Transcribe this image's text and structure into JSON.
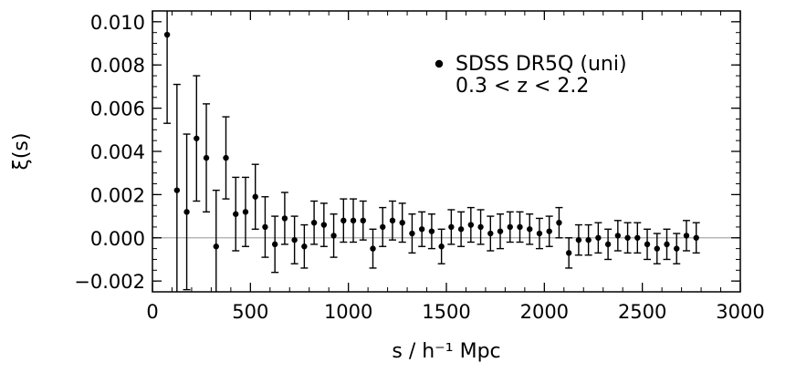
{
  "chart_data": {
    "type": "scatter",
    "title": "",
    "xlabel": "s / h⁻¹ Mpc",
    "ylabel": "ξ(s)",
    "xlim": [
      0,
      3000
    ],
    "ylim": [
      -0.0025,
      0.0105
    ],
    "grid": false,
    "reference_line": 0.0,
    "reference_line_color": "#aaaaaa",
    "x_ticks": [
      0,
      500,
      1000,
      1500,
      2000,
      2500,
      3000
    ],
    "x_tick_labels": [
      "0",
      "500",
      "1000",
      "1500",
      "2000",
      "2500",
      "3000"
    ],
    "y_ticks": [
      -0.002,
      0.0,
      0.002,
      0.004,
      0.006,
      0.008,
      0.01
    ],
    "y_tick_labels": [
      "−0.002",
      "0.000",
      "0.002",
      "0.004",
      "0.006",
      "0.008",
      "0.010"
    ],
    "legend": {
      "placement": "top-right",
      "lines": [
        "SDSS DR5Q (uni)",
        "0.3 < z < 2.2"
      ]
    },
    "series": [
      {
        "name": "SDSS DR5Q (uni)",
        "marker": "filled-circle",
        "color": "#000000",
        "x": [
          75,
          125,
          175,
          225,
          275,
          325,
          375,
          425,
          475,
          525,
          575,
          625,
          675,
          725,
          775,
          825,
          875,
          925,
          975,
          1025,
          1075,
          1125,
          1175,
          1225,
          1275,
          1325,
          1375,
          1425,
          1475,
          1525,
          1575,
          1625,
          1675,
          1725,
          1775,
          1825,
          1875,
          1925,
          1975,
          2025,
          2075,
          2125,
          2175,
          2225,
          2275,
          2325,
          2375,
          2425,
          2475,
          2525,
          2575,
          2625,
          2675,
          2725,
          2775
        ],
        "y": [
          0.0094,
          0.0022,
          0.0012,
          0.0046,
          0.0037,
          -0.0004,
          0.0037,
          0.0011,
          0.0012,
          0.0019,
          0.0005,
          -0.0003,
          0.0009,
          -0.0001,
          -0.0004,
          0.0007,
          0.0006,
          0.0001,
          0.0008,
          0.0008,
          0.0008,
          -0.0005,
          0.0005,
          0.0008,
          0.0007,
          0.0002,
          0.0004,
          0.0003,
          -0.0004,
          0.0005,
          0.0004,
          0.0006,
          0.0005,
          0.0002,
          0.0003,
          0.0005,
          0.0005,
          0.0004,
          0.0002,
          0.0003,
          0.0007,
          -0.0007,
          -0.0001,
          -0.0001,
          0.0,
          -0.0003,
          0.0001,
          0.0,
          0.0,
          -0.0003,
          -0.0005,
          -0.0003,
          -0.0005,
          0.0001,
          0.0
        ],
        "err": [
          0.0041,
          0.0049,
          0.0036,
          0.0029,
          0.0025,
          0.0026,
          0.0019,
          0.0017,
          0.0016,
          0.0015,
          0.0014,
          0.0013,
          0.0012,
          0.0011,
          0.001,
          0.001,
          0.001,
          0.001,
          0.001,
          0.001,
          0.0009,
          0.0009,
          0.0009,
          0.0009,
          0.0009,
          0.0009,
          0.0008,
          0.0008,
          0.0008,
          0.0008,
          0.0008,
          0.0008,
          0.0008,
          0.0008,
          0.0008,
          0.0007,
          0.0007,
          0.0007,
          0.0007,
          0.0007,
          0.0007,
          0.0007,
          0.0007,
          0.0007,
          0.0007,
          0.0007,
          0.0007,
          0.0007,
          0.0007,
          0.0007,
          0.0007,
          0.0007,
          0.0007,
          0.0007,
          0.0007
        ]
      }
    ]
  }
}
